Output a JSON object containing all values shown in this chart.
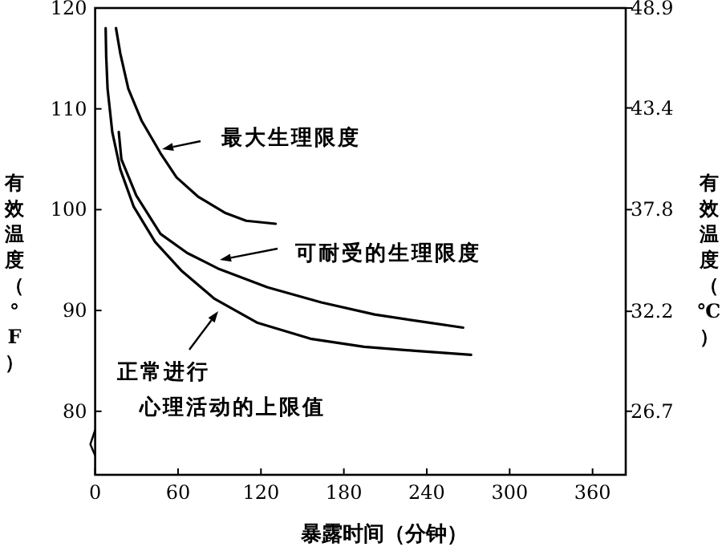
{
  "chart_data": {
    "type": "line",
    "xlabel": "暴露时间（分钟）",
    "ylabel": "有效温度（°F）",
    "y2label": "有效温度（℃）",
    "xlim": [
      0,
      384
    ],
    "xticks": [
      0,
      60,
      120,
      180,
      240,
      300,
      360
    ],
    "ylim": [
      73.7,
      120
    ],
    "yticks": [
      80,
      90,
      100,
      110,
      120
    ],
    "y2lim": [
      23.2,
      48.9
    ],
    "y2ticks": [
      26.7,
      32.2,
      37.8,
      43.4,
      48.9
    ],
    "grid": false,
    "marker": "none",
    "line_style": "solid",
    "series": [
      {
        "color": "#000000",
        "x": [
          15.1,
          18.2,
          24.0,
          33.7,
          47.3,
          58.9,
          74.4,
          93.8,
          109.3,
          130.6
        ],
        "values": [
          118.0,
          115.5,
          112.0,
          108.8,
          105.6,
          103.2,
          101.3,
          99.7,
          98.9,
          98.6
        ]
      },
      {
        "color": "#000000",
        "x": [
          17.1,
          19.0,
          29.8,
          37.6,
          47.3,
          66.7,
          89.9,
          124.8,
          163.6,
          202.3,
          241.1,
          266.3
        ],
        "values": [
          107.7,
          105.0,
          101.4,
          99.7,
          97.6,
          95.7,
          94.1,
          92.3,
          90.8,
          89.6,
          88.8,
          88.3
        ]
      },
      {
        "color": "#000000",
        "x": [
          7.6,
          8.0,
          9.0,
          12.4,
          18.2,
          27.9,
          43.4,
          62.8,
          86.0,
          117.1,
          155.8,
          194.6,
          231.4,
          272.1
        ],
        "values": [
          118.0,
          115.2,
          112.0,
          107.7,
          104.0,
          100.3,
          96.8,
          93.9,
          91.2,
          88.8,
          87.2,
          86.4,
          86.0,
          85.6
        ]
      }
    ],
    "annotations": [
      "最大生理限度",
      "可耐受的生理限度",
      "正常进行",
      "心理活动的上限值"
    ]
  }
}
